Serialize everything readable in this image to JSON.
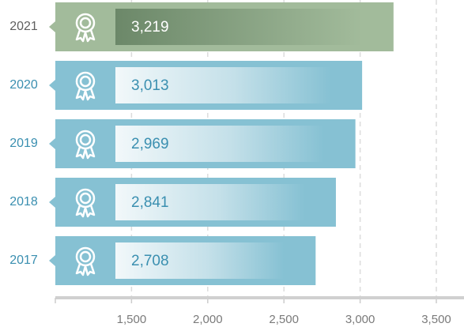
{
  "chart_data": {
    "type": "bar",
    "orientation": "horizontal",
    "categories": [
      "2021",
      "2020",
      "2019",
      "2018",
      "2017"
    ],
    "values": [
      3219,
      3013,
      2969,
      2841,
      2708
    ],
    "value_labels": [
      "3,219",
      "3,013",
      "2,969",
      "2,841",
      "2,708"
    ],
    "color": "#86c1d3",
    "highlight_color": "#a2bb9b",
    "highlight_category": "2021",
    "xlim": [
      1000,
      3500
    ],
    "xticks": [
      {
        "value": 1500,
        "label": "1,500"
      },
      {
        "value": 2000,
        "label": "2,000"
      },
      {
        "value": 2500,
        "label": "2,500"
      },
      {
        "value": 3000,
        "label": "3,000"
      },
      {
        "value": 3500,
        "label": "3,500"
      }
    ],
    "grid": true
  }
}
